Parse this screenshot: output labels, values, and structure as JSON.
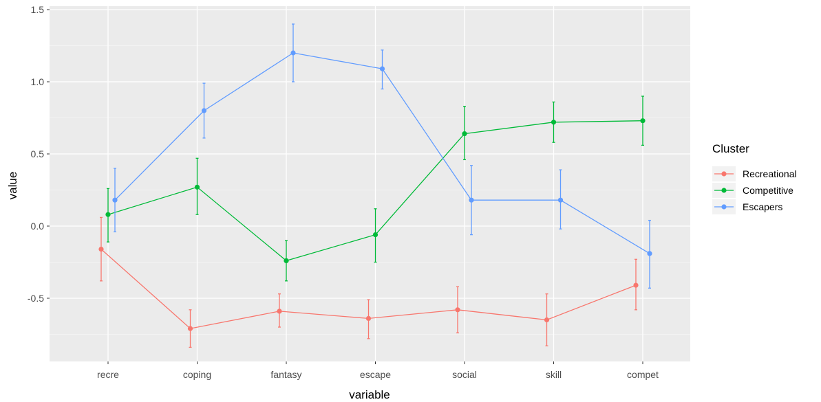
{
  "chart_data": {
    "type": "line",
    "xlabel": "variable",
    "ylabel": "value",
    "categories": [
      "recre",
      "coping",
      "fantasy",
      "escape",
      "social",
      "skill",
      "compet"
    ],
    "ylim": [
      -0.95,
      1.5
    ],
    "y_ticks": [
      -0.5,
      0.0,
      0.5,
      1.0,
      1.5
    ],
    "y_tick_labels": [
      "-0.5",
      "0.0",
      "0.5",
      "1.0",
      "1.5"
    ],
    "grid": true,
    "legend_title": "Cluster",
    "legend_position": "right",
    "series": [
      {
        "name": "Recreational",
        "color": "#F8766D",
        "values": [
          -0.16,
          -0.71,
          -0.59,
          -0.64,
          -0.58,
          -0.65,
          -0.41
        ],
        "lower": [
          -0.38,
          -0.84,
          -0.7,
          -0.78,
          -0.74,
          -0.83,
          -0.58
        ],
        "upper": [
          0.06,
          -0.58,
          -0.47,
          -0.51,
          -0.42,
          -0.47,
          -0.23
        ]
      },
      {
        "name": "Competitive",
        "color": "#00BA38",
        "values": [
          0.08,
          0.27,
          -0.24,
          -0.06,
          0.64,
          0.72,
          0.73
        ],
        "lower": [
          -0.11,
          0.08,
          -0.38,
          -0.25,
          0.46,
          0.58,
          0.56
        ],
        "upper": [
          0.26,
          0.47,
          -0.1,
          0.12,
          0.83,
          0.86,
          0.9
        ]
      },
      {
        "name": "Escapers",
        "color": "#619CFF",
        "values": [
          0.18,
          0.8,
          1.2,
          1.09,
          0.18,
          0.18,
          -0.19
        ],
        "lower": [
          -0.04,
          0.61,
          1.0,
          0.95,
          -0.06,
          -0.02,
          -0.43
        ],
        "upper": [
          0.4,
          0.99,
          1.4,
          1.22,
          0.42,
          0.39,
          0.04
        ]
      }
    ]
  }
}
